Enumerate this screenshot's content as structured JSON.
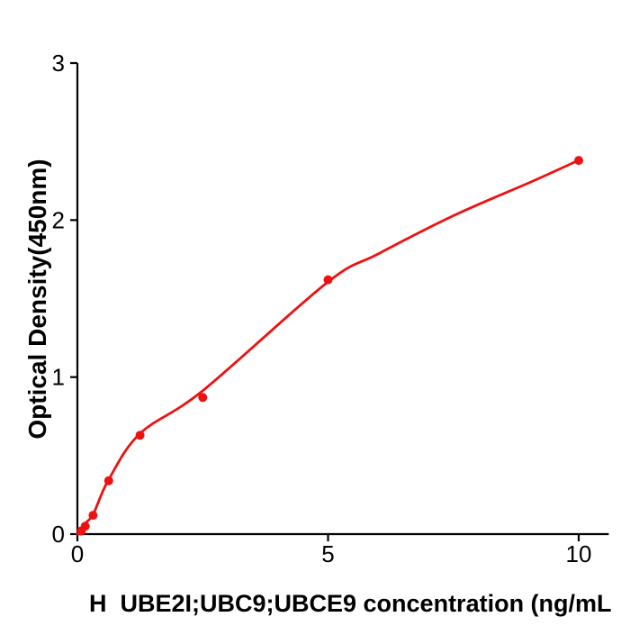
{
  "figure": {
    "background": "#ffffff",
    "curve_color": "#ee1111",
    "point_color": "#ee1111",
    "axis_color": "#000000"
  },
  "chart_data": {
    "type": "scatter",
    "title": "",
    "xlabel": "H  UBE2I;UBC9;UBCE9 concentration (ng/mL",
    "ylabel": "Optical Density(450nm)",
    "xlim": [
      0,
      10.6
    ],
    "ylim": [
      0,
      3
    ],
    "grid": false,
    "legend": null,
    "xticks": [
      {
        "value": 0,
        "label": "0"
      },
      {
        "value": 5,
        "label": "5"
      },
      {
        "value": 10,
        "label": "10"
      }
    ],
    "yticks": [
      {
        "value": 0,
        "label": "0"
      },
      {
        "value": 1,
        "label": "1"
      },
      {
        "value": 2,
        "label": "2"
      },
      {
        "value": 3,
        "label": "3"
      }
    ],
    "points": [
      {
        "conc": 0.078,
        "od": 0.02
      },
      {
        "conc": 0.156,
        "od": 0.05
      },
      {
        "conc": 0.3125,
        "od": 0.12
      },
      {
        "conc": 0.625,
        "od": 0.34
      },
      {
        "conc": 1.25,
        "od": 0.63
      },
      {
        "conc": 2.5,
        "od": 0.87
      },
      {
        "conc": 5,
        "od": 1.62
      },
      {
        "conc": 10,
        "od": 2.38
      }
    ],
    "fit_curve": [
      [
        0,
        0
      ],
      [
        0.162,
        0.069
      ],
      [
        0.323,
        0.132
      ],
      [
        0.628,
        0.35
      ],
      [
        1.257,
        0.643
      ],
      [
        2.495,
        0.912
      ],
      [
        4.973,
        1.6
      ],
      [
        5.996,
        1.784
      ],
      [
        7.522,
        2.031
      ],
      [
        9.048,
        2.243
      ],
      [
        10.0,
        2.381
      ]
    ]
  }
}
